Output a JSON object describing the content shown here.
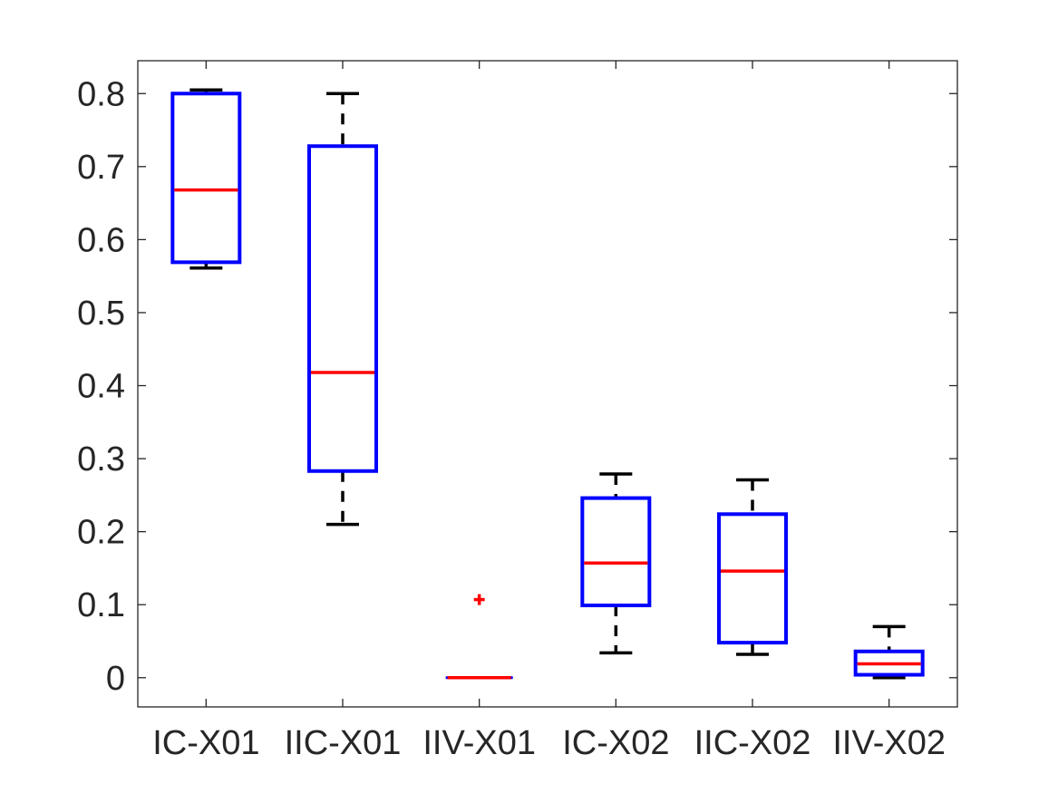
{
  "chart_data": {
    "type": "box",
    "title": "",
    "xlabel": "",
    "ylabel": "",
    "ylim": [
      -0.04,
      0.845
    ],
    "yticks": [
      0,
      0.1,
      0.2,
      0.3,
      0.4,
      0.5,
      0.6,
      0.7,
      0.8
    ],
    "ytick_labels": [
      "0",
      "0.1",
      "0.2",
      "0.3",
      "0.4",
      "0.5",
      "0.6",
      "0.7",
      "0.8"
    ],
    "grid": false,
    "categories": [
      "IC-X01",
      "IIC-X01",
      "IIV-X01",
      "IC-X02",
      "IIC-X02",
      "IIV-X02"
    ],
    "boxes": [
      {
        "category": "IC-X01",
        "whisker_low": 0.561,
        "q1": 0.569,
        "median": 0.668,
        "q3": 0.8,
        "whisker_high": 0.805,
        "outliers": []
      },
      {
        "category": "IIC-X01",
        "whisker_low": 0.21,
        "q1": 0.283,
        "median": 0.418,
        "q3": 0.728,
        "whisker_high": 0.8,
        "outliers": []
      },
      {
        "category": "IIV-X01",
        "whisker_low": 0.0,
        "q1": 0.0,
        "median": 0.0,
        "q3": 0.0,
        "whisker_high": 0.0,
        "outliers": [
          0.107
        ]
      },
      {
        "category": "IC-X02",
        "whisker_low": 0.034,
        "q1": 0.099,
        "median": 0.157,
        "q3": 0.246,
        "whisker_high": 0.279,
        "outliers": []
      },
      {
        "category": "IIC-X02",
        "whisker_low": 0.032,
        "q1": 0.048,
        "median": 0.146,
        "q3": 0.224,
        "whisker_high": 0.271,
        "outliers": []
      },
      {
        "category": "IIV-X02",
        "whisker_low": 0.0,
        "q1": 0.004,
        "median": 0.019,
        "q3": 0.036,
        "whisker_high": 0.07,
        "outliers": []
      }
    ],
    "colors": {
      "box": "#0000ff",
      "median": "#ff0000",
      "whisker": "#000000",
      "outlier": "#ff0000",
      "axes": "#262626"
    }
  }
}
